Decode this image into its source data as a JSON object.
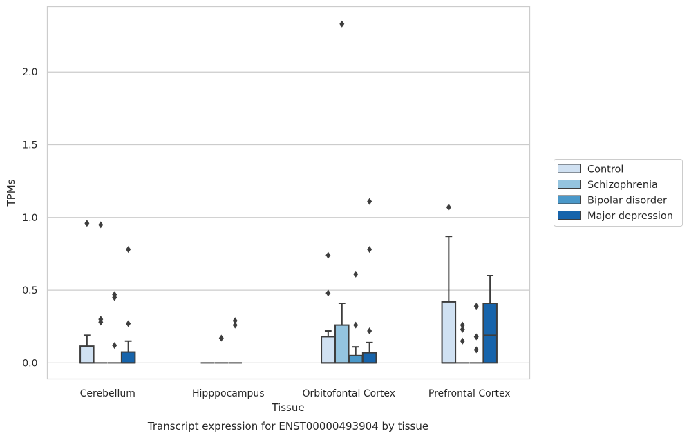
{
  "chart_data": {
    "type": "box",
    "categories": [
      "Cerebellum",
      "Hipppocampus",
      "Orbitofontal Cortex",
      "Prefrontal Cortex"
    ],
    "xlabel": "Tissue",
    "ylabel": "TPMs",
    "caption": "Transcript expression for ENST00000493904 by tissue",
    "ylim": [
      -0.11,
      2.45
    ],
    "yticks": [
      0.0,
      0.5,
      1.0,
      1.5,
      2.0
    ],
    "ytick_labels": [
      "0.0",
      "0.5",
      "1.0",
      "1.5",
      "2.0"
    ],
    "grid": "horizontal",
    "legend_position": "right",
    "series": [
      {
        "name": "Control",
        "color": "#d0e1f2",
        "boxes": [
          {
            "q1": 0.0,
            "median": 0.0,
            "q3": 0.115,
            "whisker_low": 0.0,
            "whisker_high": 0.19,
            "outliers": [
              0.96
            ]
          },
          {
            "q1": 0.0,
            "median": 0.0,
            "q3": 0.0,
            "whisker_low": 0.0,
            "whisker_high": 0.0,
            "outliers": []
          },
          {
            "q1": 0.0,
            "median": 0.0,
            "q3": 0.18,
            "whisker_low": 0.0,
            "whisker_high": 0.22,
            "outliers": [
              0.48,
              0.74
            ]
          },
          {
            "q1": 0.0,
            "median": 0.0,
            "q3": 0.42,
            "whisker_low": 0.0,
            "whisker_high": 0.87,
            "outliers": [
              1.07
            ]
          }
        ]
      },
      {
        "name": "Schizophrenia",
        "color": "#94c4df",
        "boxes": [
          {
            "q1": 0.0,
            "median": 0.0,
            "q3": 0.0,
            "whisker_low": 0.0,
            "whisker_high": 0.0,
            "outliers": [
              0.28,
              0.3,
              0.95
            ]
          },
          {
            "q1": 0.0,
            "median": 0.0,
            "q3": 0.0,
            "whisker_low": 0.0,
            "whisker_high": 0.0,
            "outliers": [
              0.17
            ]
          },
          {
            "q1": 0.0,
            "median": 0.0,
            "q3": 0.26,
            "whisker_low": 0.0,
            "whisker_high": 0.41,
            "outliers": [
              2.33
            ]
          },
          {
            "q1": 0.0,
            "median": 0.0,
            "q3": 0.0,
            "whisker_low": 0.0,
            "whisker_high": 0.0,
            "outliers": [
              0.15,
              0.23,
              0.26
            ]
          }
        ]
      },
      {
        "name": "Bipolar disorder",
        "color": "#4a98c9",
        "boxes": [
          {
            "q1": 0.0,
            "median": 0.0,
            "q3": 0.0,
            "whisker_low": 0.0,
            "whisker_high": 0.0,
            "outliers": [
              0.12,
              0.45,
              0.47
            ]
          },
          {
            "q1": 0.0,
            "median": 0.0,
            "q3": 0.0,
            "whisker_low": 0.0,
            "whisker_high": 0.0,
            "outliers": [
              0.26,
              0.29
            ]
          },
          {
            "q1": 0.0,
            "median": 0.0,
            "q3": 0.05,
            "whisker_low": 0.0,
            "whisker_high": 0.11,
            "outliers": [
              0.26,
              0.61
            ]
          },
          {
            "q1": 0.0,
            "median": 0.0,
            "q3": 0.0,
            "whisker_low": 0.0,
            "whisker_high": 0.0,
            "outliers": [
              0.09,
              0.18,
              0.39
            ]
          }
        ]
      },
      {
        "name": "Major depression",
        "color": "#1764ab",
        "boxes": [
          {
            "q1": 0.0,
            "median": 0.0,
            "q3": 0.075,
            "whisker_low": 0.0,
            "whisker_high": 0.15,
            "outliers": [
              0.27,
              0.78
            ]
          },
          null,
          {
            "q1": 0.0,
            "median": 0.0,
            "q3": 0.07,
            "whisker_low": 0.0,
            "whisker_high": 0.14,
            "outliers": [
              0.22,
              0.78,
              1.11
            ]
          },
          {
            "q1": 0.0,
            "median": 0.19,
            "q3": 0.41,
            "whisker_low": 0.0,
            "whisker_high": 0.6,
            "outliers": []
          }
        ]
      }
    ]
  }
}
